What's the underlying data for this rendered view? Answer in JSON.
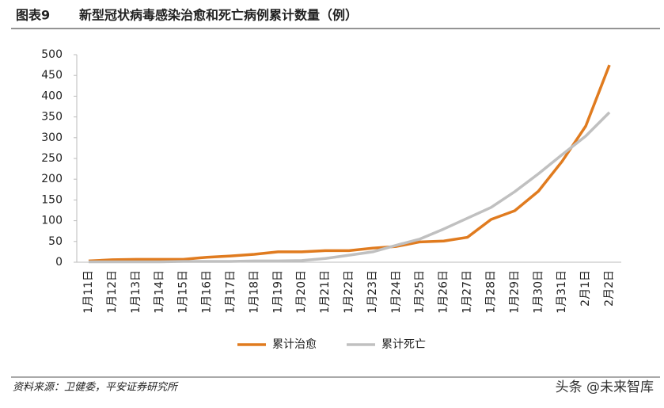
{
  "figure_label": "图表9",
  "source": "资料来源：卫健委，平安证券研究所",
  "watermark": "头条 @未来智库",
  "chart_data": {
    "type": "line",
    "title": "新型冠状病毒感染治愈和死亡病例累计数量（例）",
    "categories": [
      "1月11日",
      "1月12日",
      "1月13日",
      "1月14日",
      "1月15日",
      "1月16日",
      "1月17日",
      "1月18日",
      "1月19日",
      "1月20日",
      "1月21日",
      "1月22日",
      "1月23日",
      "1月24日",
      "1月25日",
      "1月26日",
      "1月27日",
      "1月28日",
      "1月29日",
      "1月30日",
      "1月31日",
      "2月1日",
      "2月2日"
    ],
    "series": [
      {
        "name": "累计治愈",
        "color": "#e07b1f",
        "values": [
          3,
          6,
          7,
          7,
          7,
          12,
          15,
          19,
          25,
          25,
          28,
          28,
          34,
          38,
          49,
          51,
          60,
          103,
          124,
          171,
          243,
          328,
          475
        ]
      },
      {
        "name": "累计死亡",
        "color": "#c0c0c0",
        "values": [
          1,
          1,
          1,
          1,
          2,
          2,
          2,
          3,
          3,
          4,
          9,
          17,
          25,
          41,
          56,
          80,
          106,
          132,
          170,
          213,
          259,
          304,
          361
        ]
      }
    ],
    "ylim": [
      0,
      500
    ],
    "yticks": [
      0,
      50,
      100,
      150,
      200,
      250,
      300,
      350,
      400,
      450,
      500
    ],
    "grid": false,
    "legend": "bottom"
  }
}
